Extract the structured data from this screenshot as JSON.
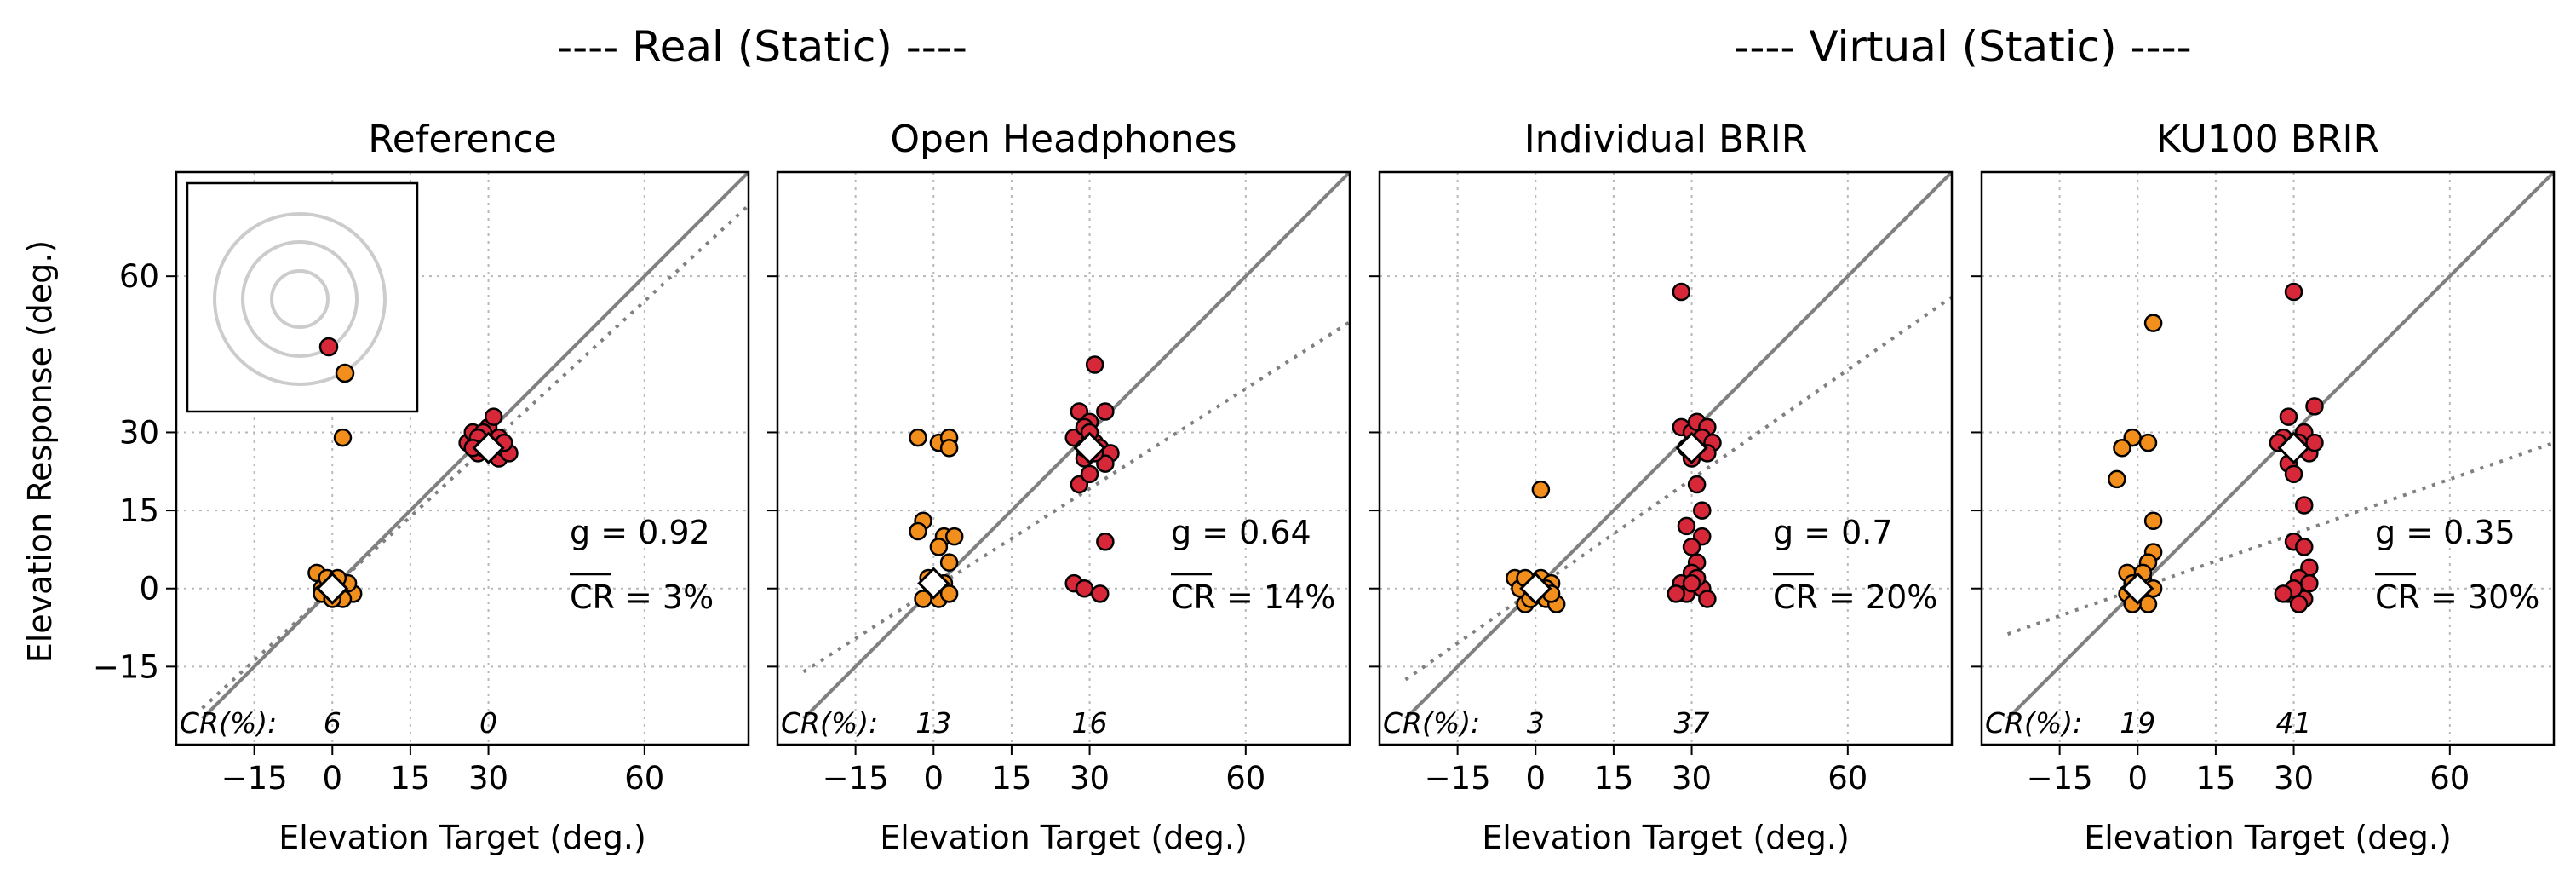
{
  "figure": {
    "groups": [
      {
        "label": "---- Real (Static) ----"
      },
      {
        "label": "---- Virtual (Static) ----"
      }
    ]
  },
  "chart_data": [
    {
      "type": "scatter",
      "title": "Reference",
      "xlabel": "Elevation Target (deg.)",
      "ylabel": "Elevation Response (deg.)",
      "xlim": [
        -30,
        80
      ],
      "ylim": [
        -30,
        80
      ],
      "xticks": [
        -15,
        0,
        15,
        30,
        60
      ],
      "yticks": [
        -15,
        0,
        15,
        30,
        60
      ],
      "grid": true,
      "gain_label": "g = 0.92",
      "cr_label": "CR = 3%",
      "cr_row_label": "CR(%):",
      "cr_values": [
        {
          "x": 0,
          "label": "6"
        },
        {
          "x": 30,
          "label": "0"
        }
      ],
      "identity_line": true,
      "fit_line": {
        "slope": 0.92,
        "intercept": 0
      },
      "inset": true,
      "series": [
        {
          "name": "",
          "color": "#f28e1c",
          "points": [
            [
              -2,
              0
            ],
            [
              -1,
              -1
            ],
            [
              0,
              1
            ],
            [
              1,
              -1
            ],
            [
              2,
              1
            ],
            [
              3,
              -1
            ],
            [
              1,
              0
            ],
            [
              -3,
              3
            ],
            [
              4,
              -1
            ],
            [
              -1,
              2
            ],
            [
              2,
              -2
            ],
            [
              3,
              1
            ],
            [
              -2,
              -1
            ],
            [
              0,
              -2
            ],
            [
              1,
              2
            ],
            [
              2,
              29
            ]
          ]
        },
        {
          "name": "",
          "color": "#d62839",
          "points": [
            [
              26,
              28
            ],
            [
              27,
              30
            ],
            [
              28,
              26
            ],
            [
              29,
              27
            ],
            [
              30,
              29
            ],
            [
              31,
              28
            ],
            [
              32,
              25
            ],
            [
              33,
              27
            ],
            [
              34,
              26
            ],
            [
              30,
              31
            ],
            [
              31,
              33
            ],
            [
              29,
              30
            ],
            [
              28,
              29
            ],
            [
              32,
              29
            ],
            [
              33,
              28
            ],
            [
              27,
              27
            ]
          ]
        },
        {
          "name": "",
          "color": "#ffffff",
          "points": [
            [
              0,
              0
            ],
            [
              30,
              27
            ]
          ]
        }
      ]
    },
    {
      "type": "scatter",
      "title": "Open Headphones",
      "xlabel": "Elevation Target (deg.)",
      "ylabel": "",
      "xlim": [
        -30,
        80
      ],
      "ylim": [
        -30,
        80
      ],
      "xticks": [
        -15,
        0,
        15,
        30,
        60
      ],
      "yticks": [
        -15,
        0,
        15,
        30,
        60
      ],
      "grid": true,
      "gain_label": "g = 0.64",
      "cr_label": "CR = 14%",
      "cr_row_label": "CR(%):",
      "cr_values": [
        {
          "x": 0,
          "label": "13"
        },
        {
          "x": 30,
          "label": "16"
        }
      ],
      "identity_line": true,
      "fit_line": {
        "slope": 0.64,
        "intercept": 0
      },
      "inset": false,
      "series": [
        {
          "name": "",
          "color": "#f28e1c",
          "points": [
            [
              -3,
              29
            ],
            [
              1,
              28
            ],
            [
              3,
              29
            ],
            [
              3,
              27
            ],
            [
              -2,
              13
            ],
            [
              -3,
              11
            ],
            [
              2,
              10
            ],
            [
              4,
              10
            ],
            [
              1,
              8
            ],
            [
              3,
              5
            ],
            [
              -1,
              2
            ],
            [
              0,
              0
            ],
            [
              1,
              -2
            ],
            [
              -2,
              -2
            ],
            [
              2,
              1
            ],
            [
              3,
              -1
            ]
          ]
        },
        {
          "name": "",
          "color": "#d62839",
          "points": [
            [
              31,
              43
            ],
            [
              28,
              34
            ],
            [
              30,
              32
            ],
            [
              33,
              34
            ],
            [
              27,
              29
            ],
            [
              29,
              31
            ],
            [
              31,
              28
            ],
            [
              32,
              27
            ],
            [
              34,
              26
            ],
            [
              33,
              24
            ],
            [
              29,
              25
            ],
            [
              28,
              20
            ],
            [
              30,
              22
            ],
            [
              27,
              1
            ],
            [
              29,
              0
            ],
            [
              33,
              9
            ],
            [
              32,
              -1
            ],
            [
              31,
              26
            ],
            [
              29,
              27
            ],
            [
              30,
              30
            ]
          ]
        },
        {
          "name": "",
          "color": "#ffffff",
          "points": [
            [
              0,
              1
            ],
            [
              30,
              27
            ]
          ]
        }
      ]
    },
    {
      "type": "scatter",
      "title": "Individual BRIR",
      "xlabel": "Elevation Target (deg.)",
      "ylabel": "",
      "xlim": [
        -30,
        80
      ],
      "ylim": [
        -30,
        80
      ],
      "xticks": [
        -15,
        0,
        15,
        30,
        60
      ],
      "yticks": [
        -15,
        0,
        15,
        30,
        60
      ],
      "grid": true,
      "gain_label": "g = 0.7",
      "cr_label": "CR = 20%",
      "cr_row_label": "CR(%):",
      "cr_values": [
        {
          "x": 0,
          "label": "3"
        },
        {
          "x": 30,
          "label": "37"
        }
      ],
      "identity_line": true,
      "fit_line": {
        "slope": 0.7,
        "intercept": 0
      },
      "inset": false,
      "series": [
        {
          "name": "",
          "color": "#f28e1c",
          "points": [
            [
              1,
              19
            ],
            [
              -4,
              2
            ],
            [
              -3,
              0
            ],
            [
              -2,
              -3
            ],
            [
              -1,
              1
            ],
            [
              0,
              -1
            ],
            [
              1,
              2
            ],
            [
              2,
              -2
            ],
            [
              3,
              1
            ],
            [
              4,
              -3
            ],
            [
              -2,
              2
            ],
            [
              2,
              0
            ],
            [
              3,
              -1
            ],
            [
              -1,
              -2
            ]
          ]
        },
        {
          "name": "",
          "color": "#d62839",
          "points": [
            [
              28,
              57
            ],
            [
              28,
              31
            ],
            [
              30,
              30
            ],
            [
              31,
              32
            ],
            [
              33,
              31
            ],
            [
              32,
              29
            ],
            [
              34,
              28
            ],
            [
              33,
              26
            ],
            [
              29,
              27
            ],
            [
              30,
              25
            ],
            [
              31,
              20
            ],
            [
              32,
              15
            ],
            [
              29,
              12
            ],
            [
              32,
              10
            ],
            [
              30,
              8
            ],
            [
              31,
              5
            ],
            [
              30,
              3
            ],
            [
              28,
              1
            ],
            [
              32,
              0
            ],
            [
              29,
              -1
            ],
            [
              27,
              -1
            ],
            [
              31,
              2
            ],
            [
              33,
              -2
            ],
            [
              30,
              1
            ]
          ]
        },
        {
          "name": "",
          "color": "#ffffff",
          "points": [
            [
              0,
              0
            ],
            [
              30,
              27
            ]
          ]
        }
      ]
    },
    {
      "type": "scatter",
      "title": "KU100 BRIR",
      "xlabel": "Elevation Target (deg.)",
      "ylabel": "",
      "xlim": [
        -30,
        80
      ],
      "ylim": [
        -30,
        80
      ],
      "xticks": [
        -15,
        0,
        15,
        30,
        60
      ],
      "yticks": [
        -15,
        0,
        15,
        30,
        60
      ],
      "grid": true,
      "gain_label": "g = 0.35",
      "cr_label": "CR = 30%",
      "cr_row_label": "CR(%):",
      "cr_values": [
        {
          "x": 0,
          "label": "19"
        },
        {
          "x": 30,
          "label": "41"
        }
      ],
      "identity_line": true,
      "fit_line": {
        "slope": 0.35,
        "intercept": 0
      },
      "inset": false,
      "series": [
        {
          "name": "",
          "color": "#f28e1c",
          "points": [
            [
              3,
              51
            ],
            [
              -1,
              29
            ],
            [
              2,
              28
            ],
            [
              -3,
              27
            ],
            [
              -4,
              21
            ],
            [
              3,
              13
            ],
            [
              3,
              7
            ],
            [
              2,
              5
            ],
            [
              -2,
              3
            ],
            [
              -1,
              1
            ],
            [
              0,
              -2
            ],
            [
              1,
              2
            ],
            [
              -2,
              -1
            ],
            [
              2,
              -3
            ],
            [
              3,
              0
            ],
            [
              -1,
              -3
            ],
            [
              1,
              3
            ]
          ]
        },
        {
          "name": "",
          "color": "#d62839",
          "points": [
            [
              30,
              57
            ],
            [
              29,
              33
            ],
            [
              32,
              30
            ],
            [
              34,
              35
            ],
            [
              31,
              28
            ],
            [
              33,
              26
            ],
            [
              28,
              29
            ],
            [
              30,
              27
            ],
            [
              34,
              28
            ],
            [
              29,
              24
            ],
            [
              32,
              16
            ],
            [
              30,
              9
            ],
            [
              32,
              8
            ],
            [
              33,
              4
            ],
            [
              31,
              2
            ],
            [
              29,
              -1
            ],
            [
              32,
              -2
            ],
            [
              30,
              0
            ],
            [
              28,
              -1
            ],
            [
              31,
              -3
            ],
            [
              33,
              1
            ],
            [
              27,
              28
            ],
            [
              30,
              22
            ]
          ]
        },
        {
          "name": "",
          "color": "#ffffff",
          "points": [
            [
              0,
              0
            ],
            [
              30,
              27
            ]
          ]
        }
      ]
    }
  ]
}
